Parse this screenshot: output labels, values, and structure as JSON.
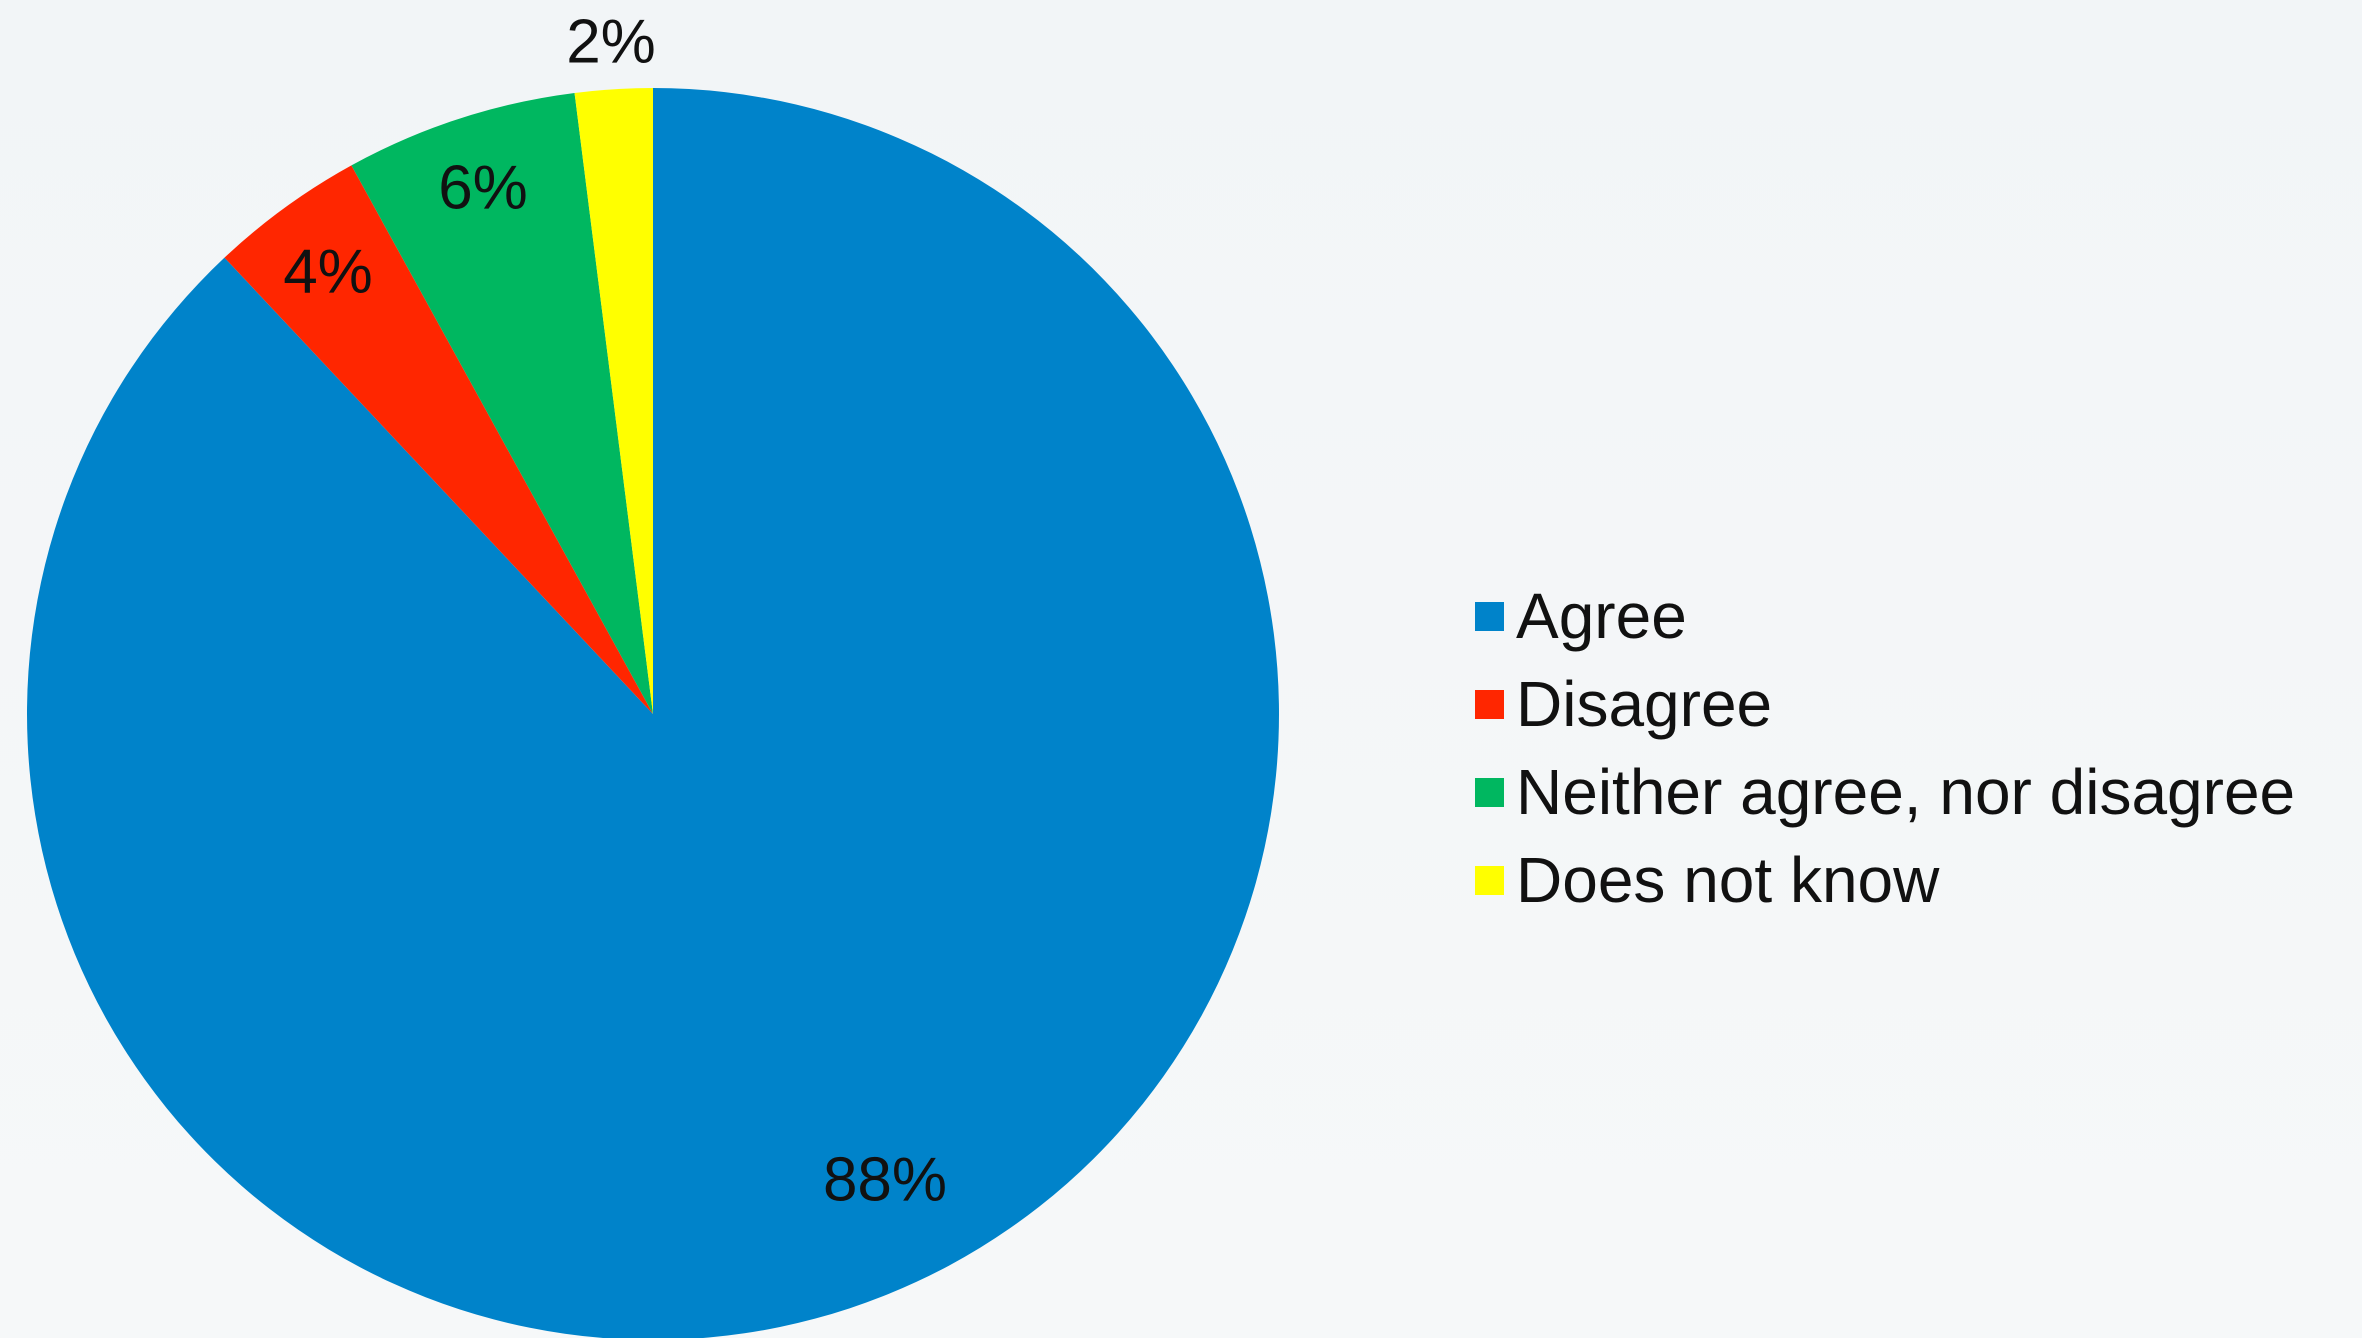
{
  "chart_data": {
    "type": "pie",
    "title": "",
    "start_angle": "12 o'clock, clockwise",
    "legend_position": "right",
    "slices": [
      {
        "name": "Agree",
        "value": 88,
        "label": "88%",
        "color": "#0083ca"
      },
      {
        "name": "Disagree",
        "value": 4,
        "label": "4%",
        "color": "#ff2600"
      },
      {
        "name": "Neither agree, nor disagree",
        "value": 6,
        "label": "6%",
        "color": "#00b760"
      },
      {
        "name": "Does not know",
        "value": 2,
        "label": "2%",
        "color": "#ffff00"
      }
    ]
  }
}
